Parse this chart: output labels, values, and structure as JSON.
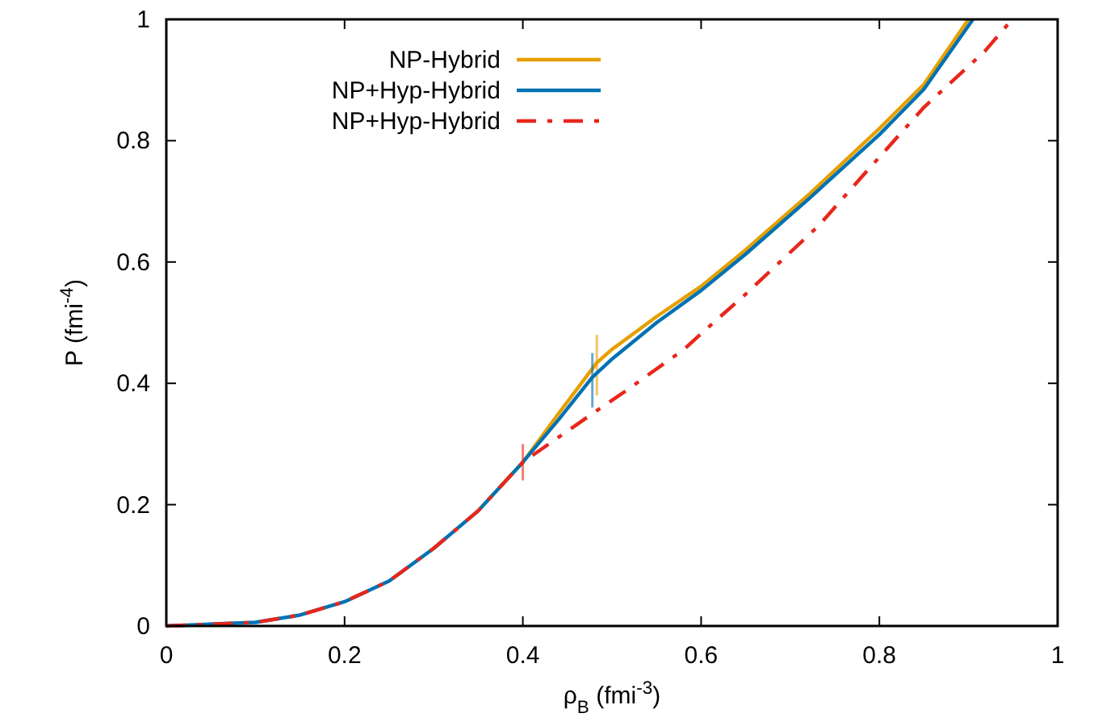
{
  "chart_data": {
    "type": "line",
    "xlabel": "ρ$_{B}$ (fmi$^{-3}$)",
    "ylabel": "P (fmi$^{-4}$)",
    "xlim": [
      0,
      1
    ],
    "ylim": [
      0,
      1
    ],
    "xticks": [
      0,
      0.2,
      0.4,
      0.6,
      0.8,
      1
    ],
    "yticks": [
      0,
      0.2,
      0.4,
      0.6,
      0.8,
      1
    ],
    "grid": false,
    "legend": "top left",
    "marker": "none",
    "series": [
      {
        "name": "NP-Hybrid",
        "color": "#e69f00",
        "line_style": "solid",
        "x": [
          0.35,
          0.4,
          0.44,
          0.483,
          0.5,
          0.55,
          0.6,
          0.65,
          0.723,
          0.8,
          0.85,
          0.9
        ],
        "values": [
          0.19,
          0.27,
          0.35,
          0.434,
          0.456,
          0.51,
          0.56,
          0.62,
          0.714,
          0.82,
          0.893,
          1
        ],
        "errors": [
          null,
          null,
          null,
          [
            0.38,
            0.48
          ],
          null,
          null,
          null,
          null,
          null,
          null,
          null,
          null
        ]
      },
      {
        "name": "NP+Hyp-Hybrid",
        "color": "#0072b2",
        "line_style": "solid",
        "x": [
          0,
          0.1,
          0.15,
          0.2,
          0.25,
          0.3,
          0.35,
          0.4,
          0.44,
          0.478,
          0.5,
          0.55,
          0.6,
          0.65,
          0.723,
          0.8,
          0.85,
          0.905
        ],
        "values": [
          0,
          0.006,
          0.018,
          0.04,
          0.074,
          0.128,
          0.19,
          0.27,
          0.34,
          0.41,
          0.44,
          0.5,
          0.553,
          0.613,
          0.707,
          0.81,
          0.885,
          1
        ],
        "errors": [
          null,
          null,
          null,
          null,
          null,
          null,
          null,
          null,
          null,
          [
            0.36,
            0.45
          ],
          null,
          null,
          null,
          null,
          null,
          null,
          null,
          null
        ]
      },
      {
        "name": "NP+Hyp-Hybrid",
        "color": "#e8261b",
        "line_style": "dashed",
        "x": [
          0,
          0.1,
          0.15,
          0.2,
          0.25,
          0.3,
          0.35,
          0.4,
          0.478,
          0.514,
          0.556,
          0.58,
          0.61,
          0.647,
          0.732,
          0.78,
          0.85,
          0.918,
          0.949
        ],
        "values": [
          0,
          0.006,
          0.018,
          0.04,
          0.074,
          0.128,
          0.19,
          0.27,
          0.35,
          0.386,
          0.43,
          0.455,
          0.495,
          0.543,
          0.66,
          0.74,
          0.855,
          0.947,
          1
        ],
        "errors": [
          null,
          null,
          null,
          null,
          null,
          null,
          null,
          [
            0.24,
            0.3
          ],
          null,
          null,
          null,
          null,
          null,
          null,
          null,
          null,
          null,
          null,
          null
        ]
      }
    ]
  }
}
